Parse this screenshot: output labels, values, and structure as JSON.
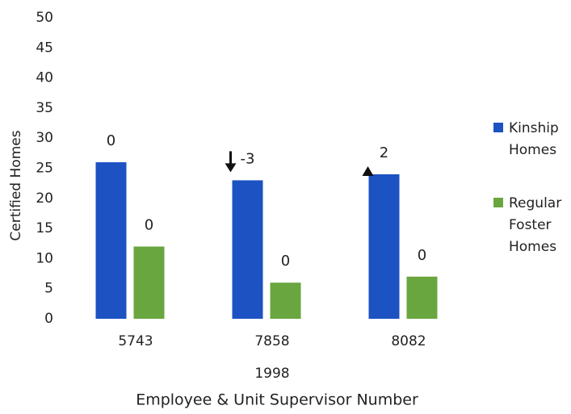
{
  "chart_data": {
    "type": "bar",
    "categories": [
      "5743",
      "7858",
      "8082"
    ],
    "x_group_label": "1998",
    "xlabel": "Employee & Unit Supervisor Number",
    "ylabel": "Certified Homes",
    "ylim": [
      0,
      50
    ],
    "yticks": [
      0,
      5,
      10,
      15,
      20,
      25,
      30,
      35,
      40,
      45,
      50
    ],
    "grid": false,
    "legend": "right",
    "series": [
      {
        "name": "Kinship Homes",
        "color": "#1d52c2",
        "values": [
          26,
          23,
          24
        ],
        "changes": [
          0,
          -3,
          2
        ]
      },
      {
        "name": "Regular Foster Homes",
        "color": "#6aa63f",
        "values": [
          12,
          6,
          7
        ],
        "changes": [
          0,
          0,
          0
        ]
      }
    ]
  }
}
